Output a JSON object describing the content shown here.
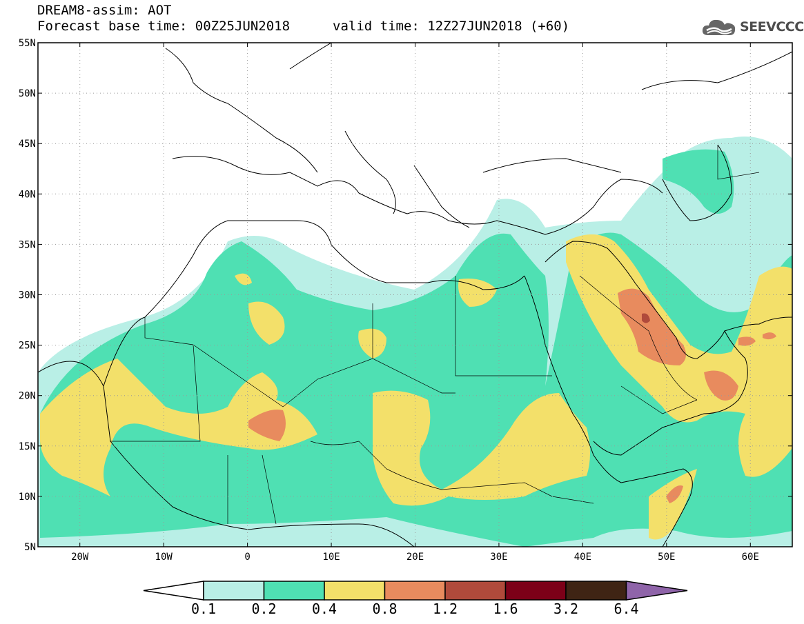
{
  "header": {
    "title_line1": "DREAM8-assim: AOT",
    "base_time_label": "Forecast base time: 00Z25JUN2018",
    "valid_time_label": "valid time: 12Z27JUN2018 (+60)"
  },
  "logo": {
    "text": "SEEVCCC",
    "icon": "cloud-logo-icon",
    "color": "#666666"
  },
  "map": {
    "lon_range": [
      -25,
      65
    ],
    "lat_range": [
      5,
      55
    ],
    "lon_ticks": [
      {
        "value": -20,
        "label": "20W"
      },
      {
        "value": -10,
        "label": "10W"
      },
      {
        "value": 0,
        "label": "0"
      },
      {
        "value": 10,
        "label": "10E"
      },
      {
        "value": 20,
        "label": "20E"
      },
      {
        "value": 30,
        "label": "30E"
      },
      {
        "value": 40,
        "label": "40E"
      },
      {
        "value": 50,
        "label": "50E"
      },
      {
        "value": 60,
        "label": "60E"
      }
    ],
    "lat_ticks": [
      {
        "value": 55,
        "label": "55N"
      },
      {
        "value": 50,
        "label": "50N"
      },
      {
        "value": 45,
        "label": "45N"
      },
      {
        "value": 40,
        "label": "40N"
      },
      {
        "value": 35,
        "label": "35N"
      },
      {
        "value": 30,
        "label": "30N"
      },
      {
        "value": 25,
        "label": "25N"
      },
      {
        "value": 20,
        "label": "20N"
      },
      {
        "value": 15,
        "label": "15N"
      },
      {
        "value": 10,
        "label": "10N"
      },
      {
        "value": 5,
        "label": "5N"
      }
    ],
    "gridlines": true
  },
  "legend": {
    "colors": [
      "#ffffff",
      "#b9efe6",
      "#4fe0b3",
      "#f3e06a",
      "#e88b5e",
      "#b04a3b",
      "#7c0018",
      "#3f2414",
      "#8f64a9"
    ],
    "labels": [
      "0.1",
      "0.2",
      "0.4",
      "0.8",
      "1.2",
      "1.6",
      "3.2",
      "6.4"
    ]
  }
}
